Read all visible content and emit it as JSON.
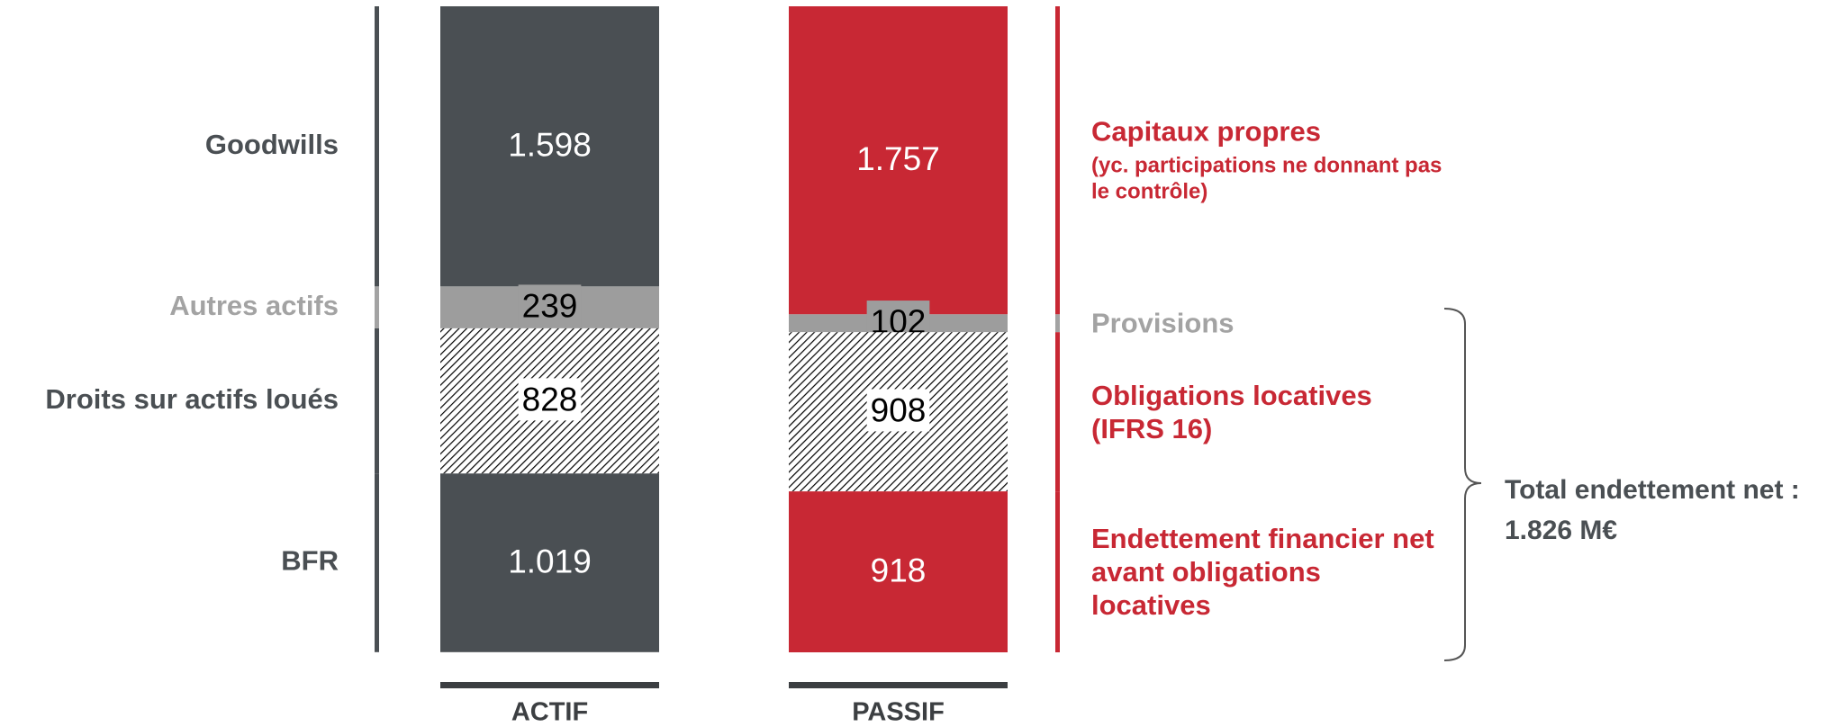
{
  "chart_data": {
    "type": "stacked_bar",
    "categories": [
      "ACTIF",
      "PASSIF"
    ],
    "series": [
      {
        "name": "Goodwills",
        "color": "#4a4f53",
        "label_color": "#4a4f53",
        "value_color": "#ffffff",
        "values": [
          1598,
          null
        ],
        "value_labels": [
          "1.598",
          null
        ]
      },
      {
        "name": "Autres actifs",
        "color": "#9d9d9d",
        "label_color": "#a3a3a3",
        "value_color": "#000000",
        "values": [
          239,
          null
        ],
        "value_labels": [
          "239",
          null
        ]
      },
      {
        "name": "Droits sur actifs loués",
        "color": "#4a4f53",
        "pattern": "hatch",
        "label_color": "#4a4f53",
        "value_color": "#000000",
        "values": [
          828,
          null
        ],
        "value_labels": [
          "828",
          null
        ]
      },
      {
        "name": "BFR",
        "color": "#4a4f53",
        "label_color": "#4a4f53",
        "value_color": "#ffffff",
        "values": [
          1019,
          null
        ],
        "value_labels": [
          "1.019",
          null
        ]
      },
      {
        "name": "Capitaux propres",
        "note": "(yc. participations ne donnant pas le contrôle)",
        "color": "#c82834",
        "label_color": "#c82834",
        "value_color": "#ffffff",
        "values": [
          null,
          1757
        ],
        "value_labels": [
          null,
          "1.757"
        ]
      },
      {
        "name": "Provisions",
        "color": "#9d9d9d",
        "label_color": "#a3a3a3",
        "value_color": "#000000",
        "values": [
          null,
          102
        ],
        "value_labels": [
          null,
          "102"
        ]
      },
      {
        "name": "Obligations locatives (IFRS 16)",
        "color": "#c82834",
        "pattern": "hatch",
        "label_color": "#c82834",
        "value_color": "#000000",
        "values": [
          null,
          908
        ],
        "value_labels": [
          null,
          "908"
        ]
      },
      {
        "name": "Endettement financier net avant obligations locatives",
        "color": "#c82834",
        "label_color": "#c82834",
        "value_color": "#ffffff",
        "values": [
          null,
          918
        ],
        "value_labels": [
          null,
          "918"
        ]
      }
    ],
    "annotation": "Total endettement net : 1.826 M€"
  }
}
